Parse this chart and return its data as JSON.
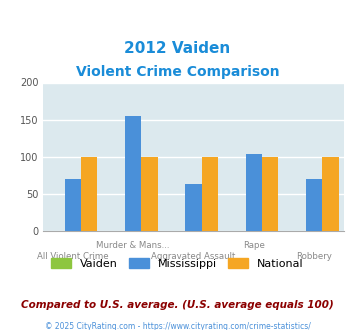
{
  "title_line1": "2012 Vaiden",
  "title_line2": "Violent Crime Comparison",
  "title_color": "#1a8cd8",
  "categories": [
    "All Violent Crime",
    "Murder & Mans...",
    "Aggravated Assault",
    "Rape",
    "Robbery"
  ],
  "vaiden": [
    0,
    0,
    0,
    0,
    0
  ],
  "mississippi": [
    70,
    155,
    63,
    104,
    70
  ],
  "national": [
    100,
    100,
    100,
    100,
    100
  ],
  "vaiden_color": "#8dc63f",
  "mississippi_color": "#4a90d9",
  "national_color": "#f5a623",
  "ylim": [
    0,
    200
  ],
  "yticks": [
    0,
    50,
    100,
    150,
    200
  ],
  "plot_bg": "#dce9ee",
  "legend_labels": [
    "Vaiden",
    "Mississippi",
    "National"
  ],
  "footer_text": "Compared to U.S. average. (U.S. average equals 100)",
  "footer_color": "#8b0000",
  "copyright_text": "© 2025 CityRating.com - https://www.cityrating.com/crime-statistics/",
  "copyright_color": "#4a90d9",
  "bar_width": 0.27,
  "x_upper": [
    "",
    "Murder & Mans...",
    "",
    "Rape",
    ""
  ],
  "x_lower": [
    "All Violent Crime",
    "",
    "Aggravated Assault",
    "",
    "Robbery"
  ]
}
